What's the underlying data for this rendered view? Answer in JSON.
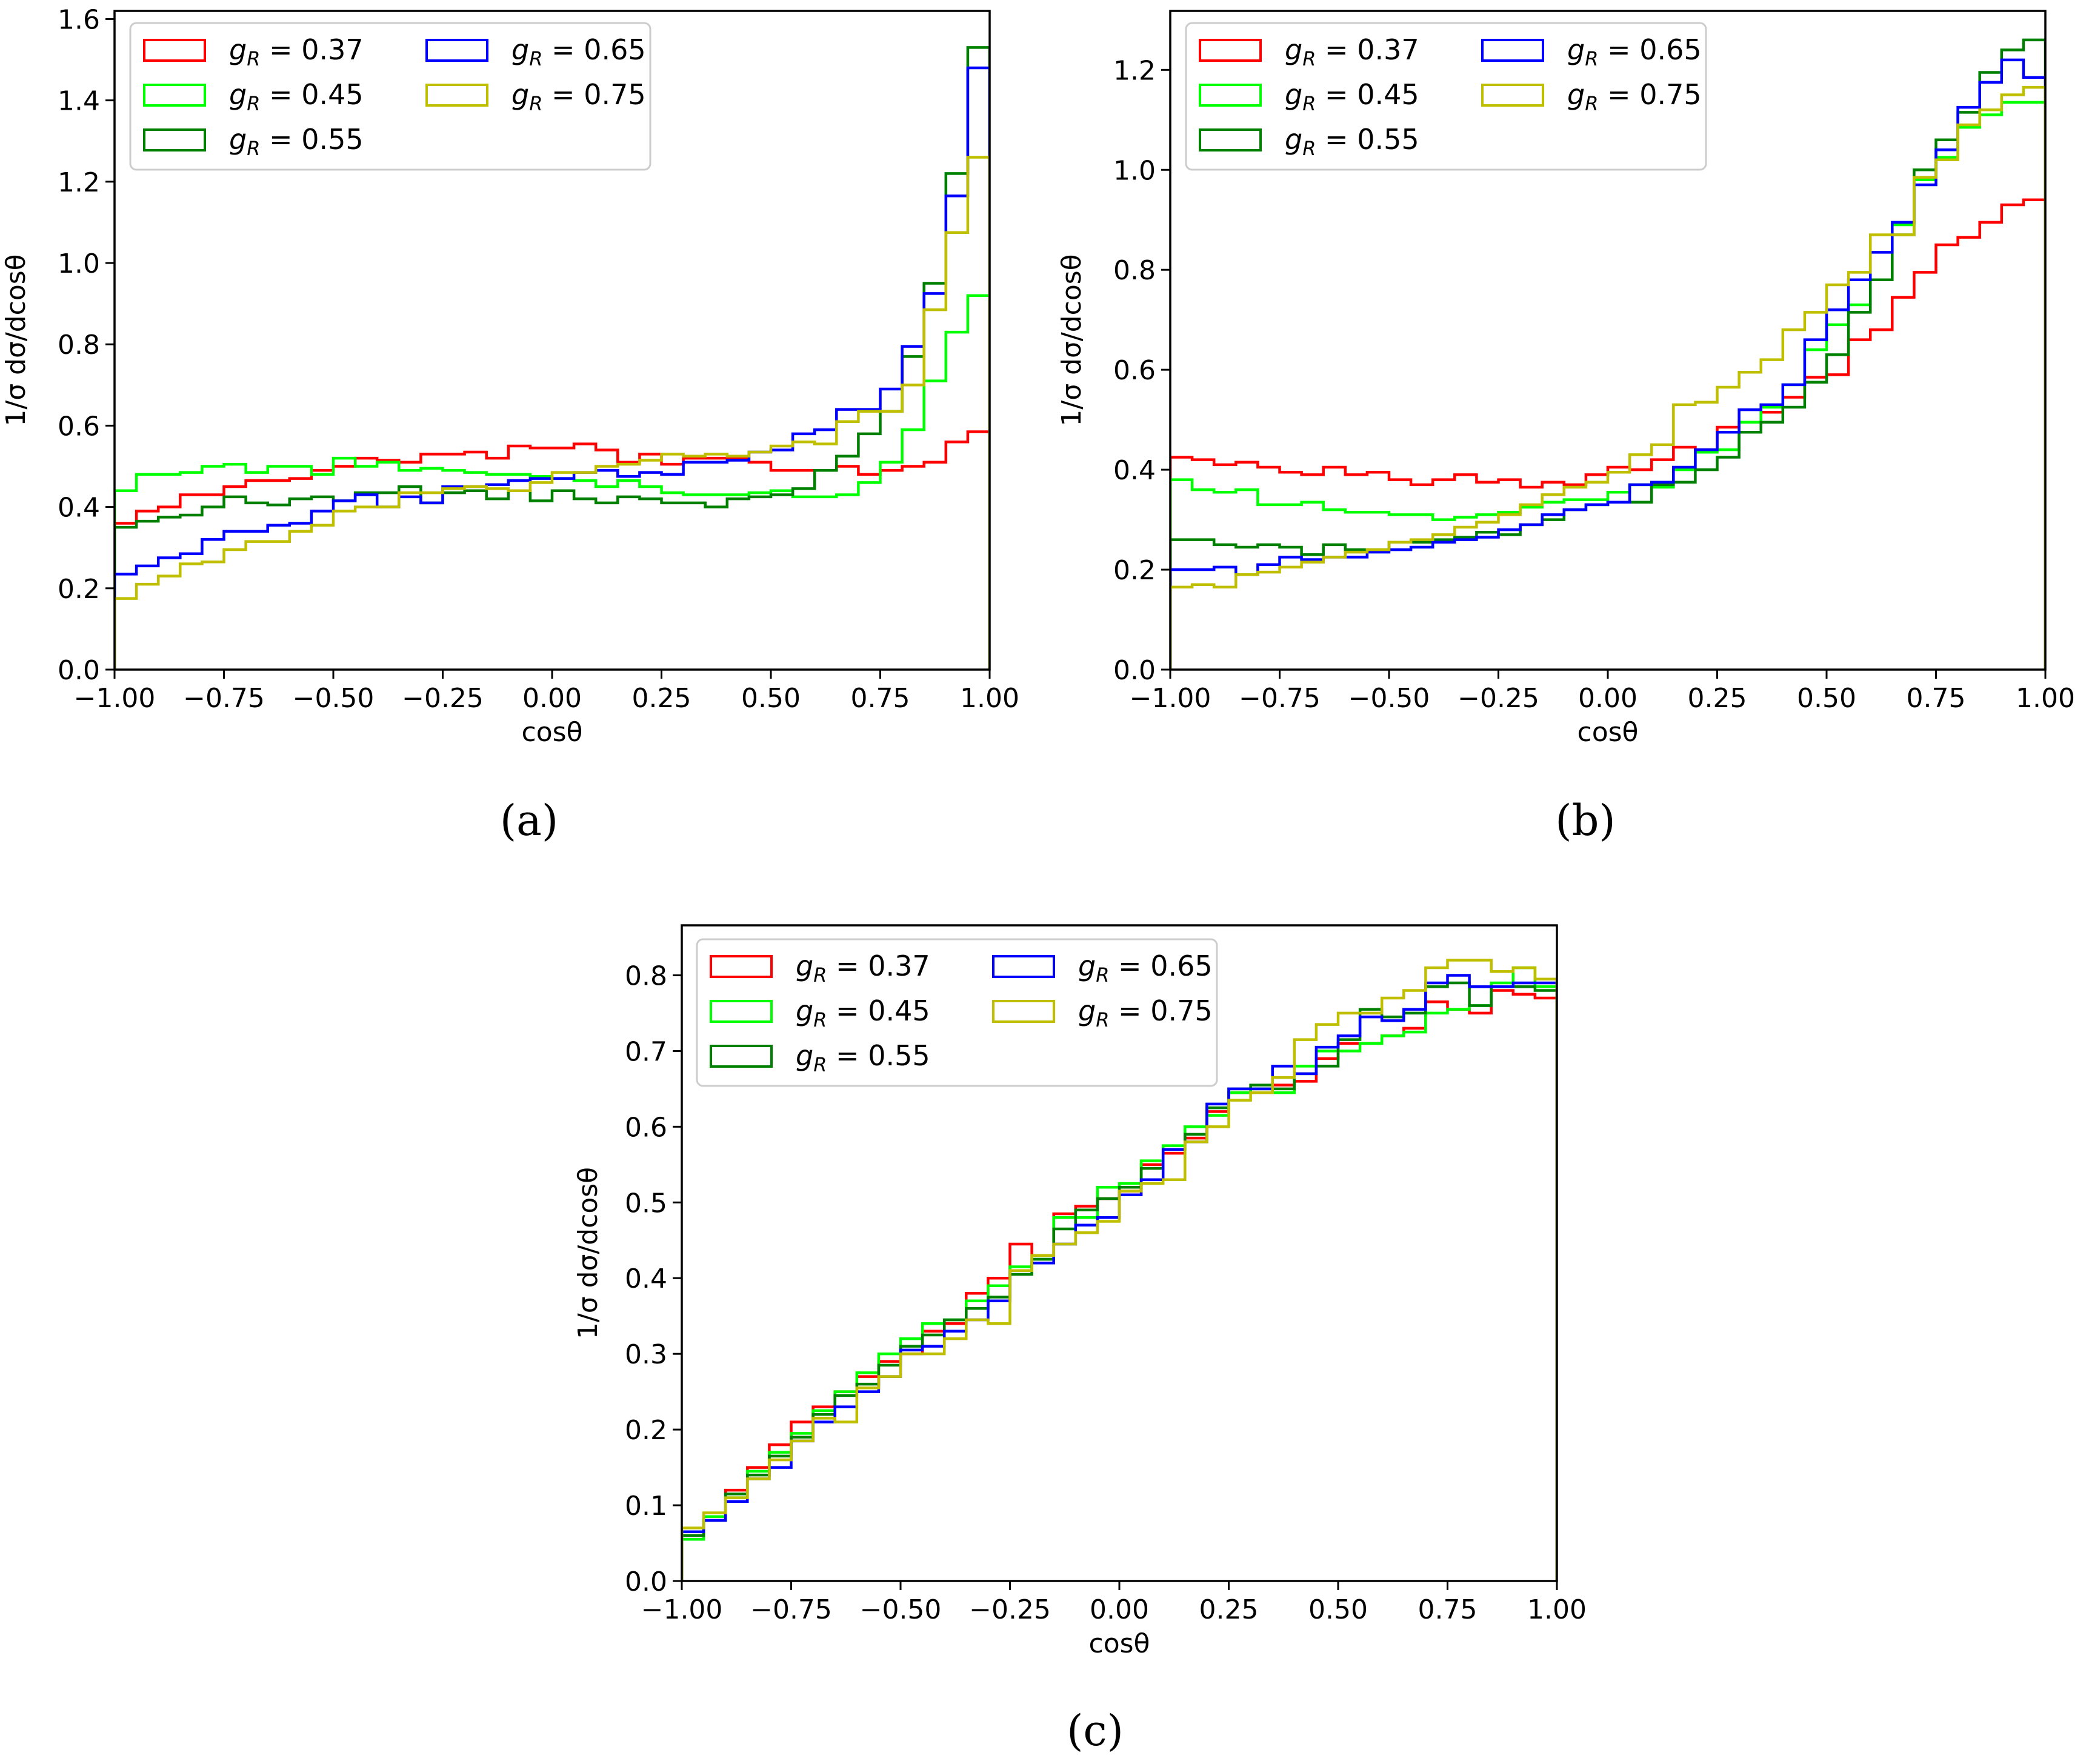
{
  "figure": {
    "panels_caption": [
      "(a)",
      "(b)",
      "(c)"
    ]
  },
  "chart_data": [
    {
      "id": "a",
      "type": "line",
      "style": "step-histogram",
      "caption": "(a)",
      "title": "",
      "xlabel": "cosθ",
      "ylabel": "1/σ dσ/dcosθ",
      "xlim": [
        -1.0,
        1.0
      ],
      "ylim": [
        0.0,
        1.62
      ],
      "xticks": [
        -1.0,
        -0.75,
        -0.5,
        -0.25,
        0.0,
        0.25,
        0.5,
        0.75,
        1.0
      ],
      "xtick_labels": [
        "−1.00",
        "−0.75",
        "−0.50",
        "−0.25",
        "0.00",
        "0.25",
        "0.50",
        "0.75",
        "1.00"
      ],
      "yticks": [
        0.0,
        0.2,
        0.4,
        0.6,
        0.8,
        1.0,
        1.2,
        1.4,
        1.6
      ],
      "ytick_labels": [
        "0.0",
        "0.2",
        "0.4",
        "0.6",
        "0.8",
        "1.0",
        "1.2",
        "1.4",
        "1.6"
      ],
      "bin_edges_range": [
        -1.0,
        1.0
      ],
      "n_bins": 40,
      "grid": false,
      "legend_position": "top-left",
      "series": [
        {
          "name": "g_R = 0.37",
          "label_value": "0.37",
          "color": "#ff0000",
          "values": [
            0.36,
            0.39,
            0.4,
            0.43,
            0.43,
            0.45,
            0.465,
            0.465,
            0.47,
            0.49,
            0.5,
            0.52,
            0.515,
            0.51,
            0.53,
            0.53,
            0.535,
            0.52,
            0.55,
            0.545,
            0.545,
            0.555,
            0.54,
            0.51,
            0.53,
            0.505,
            0.52,
            0.52,
            0.52,
            0.51,
            0.49,
            0.49,
            0.49,
            0.5,
            0.48,
            0.49,
            0.5,
            0.51,
            0.56,
            0.585
          ]
        },
        {
          "name": "g_R = 0.45",
          "label_value": "0.45",
          "color": "#00ff00",
          "values": [
            0.44,
            0.48,
            0.48,
            0.485,
            0.5,
            0.505,
            0.485,
            0.5,
            0.5,
            0.48,
            0.52,
            0.5,
            0.51,
            0.49,
            0.495,
            0.49,
            0.485,
            0.48,
            0.48,
            0.475,
            0.47,
            0.465,
            0.45,
            0.465,
            0.45,
            0.435,
            0.43,
            0.43,
            0.43,
            0.435,
            0.44,
            0.425,
            0.425,
            0.43,
            0.46,
            0.51,
            0.59,
            0.71,
            0.83,
            0.92
          ]
        },
        {
          "name": "g_R = 0.55",
          "label_value": "0.55",
          "color": "#008000",
          "values": [
            0.35,
            0.365,
            0.375,
            0.38,
            0.4,
            0.425,
            0.41,
            0.405,
            0.42,
            0.425,
            0.415,
            0.435,
            0.435,
            0.45,
            0.41,
            0.435,
            0.44,
            0.42,
            0.44,
            0.415,
            0.44,
            0.42,
            0.41,
            0.425,
            0.42,
            0.41,
            0.41,
            0.4,
            0.42,
            0.425,
            0.43,
            0.445,
            0.49,
            0.525,
            0.58,
            0.635,
            0.77,
            0.95,
            1.22,
            1.53
          ]
        },
        {
          "name": "g_R = 0.65",
          "label_value": "0.65",
          "color": "#0000ff",
          "values": [
            0.235,
            0.255,
            0.275,
            0.285,
            0.32,
            0.34,
            0.34,
            0.355,
            0.36,
            0.39,
            0.415,
            0.43,
            0.4,
            0.425,
            0.41,
            0.45,
            0.45,
            0.455,
            0.465,
            0.47,
            0.47,
            0.485,
            0.49,
            0.475,
            0.485,
            0.48,
            0.51,
            0.51,
            0.515,
            0.535,
            0.54,
            0.58,
            0.59,
            0.64,
            0.64,
            0.69,
            0.795,
            0.925,
            1.165,
            1.48
          ]
        },
        {
          "name": "g_R = 0.75",
          "label_value": "0.75",
          "color": "#bfbf00",
          "values": [
            0.175,
            0.21,
            0.23,
            0.26,
            0.265,
            0.295,
            0.315,
            0.315,
            0.34,
            0.355,
            0.39,
            0.4,
            0.4,
            0.435,
            0.435,
            0.445,
            0.45,
            0.445,
            0.44,
            0.46,
            0.485,
            0.485,
            0.5,
            0.505,
            0.515,
            0.53,
            0.525,
            0.53,
            0.525,
            0.535,
            0.55,
            0.56,
            0.555,
            0.61,
            0.635,
            0.635,
            0.7,
            0.885,
            1.075,
            1.26
          ]
        }
      ]
    },
    {
      "id": "b",
      "type": "line",
      "style": "step-histogram",
      "caption": "(b)",
      "title": "",
      "xlabel": "cosθ",
      "ylabel": "1/σ dσ/dcosθ",
      "xlim": [
        -1.0,
        1.0
      ],
      "ylim": [
        0.0,
        1.318
      ],
      "xticks": [
        -1.0,
        -0.75,
        -0.5,
        -0.25,
        0.0,
        0.25,
        0.5,
        0.75,
        1.0
      ],
      "xtick_labels": [
        "−1.00",
        "−0.75",
        "−0.50",
        "−0.25",
        "0.00",
        "0.25",
        "0.50",
        "0.75",
        "1.00"
      ],
      "yticks": [
        0.0,
        0.2,
        0.4,
        0.6,
        0.8,
        1.0,
        1.2
      ],
      "ytick_labels": [
        "0.0",
        "0.2",
        "0.4",
        "0.6",
        "0.8",
        "1.0",
        "1.2"
      ],
      "bin_edges_range": [
        -1.0,
        1.0
      ],
      "n_bins": 40,
      "grid": false,
      "legend_position": "top-left",
      "series": [
        {
          "name": "g_R = 0.37",
          "label_value": "0.37",
          "color": "#ff0000",
          "values": [
            0.425,
            0.42,
            0.41,
            0.415,
            0.405,
            0.395,
            0.39,
            0.405,
            0.39,
            0.395,
            0.38,
            0.37,
            0.38,
            0.39,
            0.375,
            0.38,
            0.365,
            0.375,
            0.37,
            0.39,
            0.405,
            0.4,
            0.42,
            0.445,
            0.44,
            0.485,
            0.495,
            0.515,
            0.545,
            0.585,
            0.59,
            0.66,
            0.68,
            0.745,
            0.795,
            0.85,
            0.865,
            0.895,
            0.93,
            0.94
          ]
        },
        {
          "name": "g_R = 0.45",
          "label_value": "0.45",
          "color": "#00ff00",
          "values": [
            0.38,
            0.36,
            0.355,
            0.36,
            0.33,
            0.33,
            0.335,
            0.32,
            0.315,
            0.315,
            0.31,
            0.31,
            0.3,
            0.305,
            0.31,
            0.315,
            0.325,
            0.335,
            0.34,
            0.34,
            0.355,
            0.37,
            0.365,
            0.4,
            0.435,
            0.44,
            0.495,
            0.525,
            0.57,
            0.64,
            0.69,
            0.73,
            0.78,
            0.89,
            0.98,
            1.025,
            1.085,
            1.11,
            1.135,
            1.135
          ]
        },
        {
          "name": "g_R = 0.55",
          "label_value": "0.55",
          "color": "#008000",
          "values": [
            0.26,
            0.26,
            0.25,
            0.245,
            0.25,
            0.245,
            0.23,
            0.25,
            0.24,
            0.24,
            0.255,
            0.255,
            0.26,
            0.265,
            0.275,
            0.27,
            0.29,
            0.3,
            0.32,
            0.33,
            0.335,
            0.335,
            0.37,
            0.375,
            0.4,
            0.425,
            0.475,
            0.495,
            0.525,
            0.575,
            0.63,
            0.715,
            0.78,
            0.87,
            1.0,
            1.06,
            1.115,
            1.195,
            1.24,
            1.26
          ]
        },
        {
          "name": "g_R = 0.65",
          "label_value": "0.65",
          "color": "#0000ff",
          "values": [
            0.2,
            0.2,
            0.205,
            0.19,
            0.21,
            0.225,
            0.22,
            0.225,
            0.225,
            0.235,
            0.24,
            0.245,
            0.255,
            0.26,
            0.265,
            0.28,
            0.29,
            0.31,
            0.32,
            0.33,
            0.335,
            0.37,
            0.375,
            0.405,
            0.44,
            0.475,
            0.52,
            0.53,
            0.57,
            0.66,
            0.72,
            0.78,
            0.835,
            0.895,
            0.97,
            1.04,
            1.125,
            1.175,
            1.22,
            1.185
          ]
        },
        {
          "name": "g_R = 0.75",
          "label_value": "0.75",
          "color": "#bfbf00",
          "values": [
            0.165,
            0.17,
            0.165,
            0.19,
            0.195,
            0.205,
            0.215,
            0.225,
            0.235,
            0.24,
            0.255,
            0.26,
            0.27,
            0.285,
            0.295,
            0.31,
            0.33,
            0.35,
            0.365,
            0.375,
            0.395,
            0.43,
            0.45,
            0.53,
            0.535,
            0.565,
            0.595,
            0.62,
            0.68,
            0.715,
            0.77,
            0.795,
            0.87,
            0.87,
            0.985,
            1.02,
            1.09,
            1.12,
            1.15,
            1.165
          ]
        }
      ]
    },
    {
      "id": "c",
      "type": "line",
      "style": "step-histogram",
      "caption": "(c)",
      "title": "",
      "xlabel": "cosθ",
      "ylabel": "1/σ dσ/dcosθ",
      "xlim": [
        -1.0,
        1.0
      ],
      "ylim": [
        0.0,
        0.866
      ],
      "xticks": [
        -1.0,
        -0.75,
        -0.5,
        -0.25,
        0.0,
        0.25,
        0.5,
        0.75,
        1.0
      ],
      "xtick_labels": [
        "−1.00",
        "−0.75",
        "−0.50",
        "−0.25",
        "0.00",
        "0.25",
        "0.50",
        "0.75",
        "1.00"
      ],
      "yticks": [
        0.0,
        0.1,
        0.2,
        0.3,
        0.4,
        0.5,
        0.6,
        0.7,
        0.8
      ],
      "ytick_labels": [
        "0.0",
        "0.1",
        "0.2",
        "0.3",
        "0.4",
        "0.5",
        "0.6",
        "0.7",
        "0.8"
      ],
      "bin_edges_range": [
        -1.0,
        1.0
      ],
      "n_bins": 40,
      "grid": false,
      "legend_position": "top-left",
      "series": [
        {
          "name": "g_R = 0.37",
          "label_value": "0.37",
          "color": "#ff0000",
          "values": [
            0.06,
            0.08,
            0.12,
            0.15,
            0.18,
            0.21,
            0.23,
            0.25,
            0.27,
            0.29,
            0.3,
            0.33,
            0.34,
            0.38,
            0.4,
            0.445,
            0.43,
            0.485,
            0.495,
            0.505,
            0.515,
            0.55,
            0.565,
            0.585,
            0.62,
            0.645,
            0.65,
            0.655,
            0.66,
            0.69,
            0.71,
            0.71,
            0.72,
            0.73,
            0.765,
            0.755,
            0.75,
            0.78,
            0.775,
            0.77
          ]
        },
        {
          "name": "g_R = 0.45",
          "label_value": "0.45",
          "color": "#00ff00",
          "values": [
            0.055,
            0.085,
            0.11,
            0.145,
            0.17,
            0.195,
            0.225,
            0.25,
            0.275,
            0.3,
            0.32,
            0.34,
            0.345,
            0.37,
            0.39,
            0.415,
            0.425,
            0.48,
            0.48,
            0.52,
            0.525,
            0.555,
            0.575,
            0.6,
            0.615,
            0.645,
            0.65,
            0.645,
            0.68,
            0.7,
            0.7,
            0.71,
            0.72,
            0.725,
            0.75,
            0.755,
            0.76,
            0.79,
            0.81,
            0.785
          ]
        },
        {
          "name": "g_R = 0.55",
          "label_value": "0.55",
          "color": "#008000",
          "values": [
            0.06,
            0.08,
            0.115,
            0.14,
            0.165,
            0.19,
            0.22,
            0.245,
            0.26,
            0.285,
            0.31,
            0.325,
            0.345,
            0.36,
            0.375,
            0.405,
            0.425,
            0.465,
            0.49,
            0.505,
            0.52,
            0.545,
            0.57,
            0.59,
            0.625,
            0.65,
            0.655,
            0.65,
            0.67,
            0.68,
            0.715,
            0.755,
            0.745,
            0.75,
            0.785,
            0.79,
            0.76,
            0.785,
            0.785,
            0.78
          ]
        },
        {
          "name": "g_R = 0.65",
          "label_value": "0.65",
          "color": "#0000ff",
          "values": [
            0.065,
            0.08,
            0.105,
            0.135,
            0.15,
            0.185,
            0.21,
            0.23,
            0.25,
            0.27,
            0.305,
            0.31,
            0.33,
            0.345,
            0.37,
            0.41,
            0.42,
            0.445,
            0.47,
            0.48,
            0.51,
            0.53,
            0.57,
            0.58,
            0.63,
            0.65,
            0.65,
            0.68,
            0.67,
            0.705,
            0.72,
            0.745,
            0.74,
            0.755,
            0.79,
            0.8,
            0.785,
            0.785,
            0.79,
            0.79
          ]
        },
        {
          "name": "g_R = 0.75",
          "label_value": "0.75",
          "color": "#bfbf00",
          "values": [
            0.07,
            0.09,
            0.11,
            0.135,
            0.16,
            0.185,
            0.215,
            0.21,
            0.255,
            0.27,
            0.3,
            0.3,
            0.32,
            0.345,
            0.34,
            0.41,
            0.43,
            0.445,
            0.46,
            0.475,
            0.515,
            0.525,
            0.53,
            0.58,
            0.6,
            0.635,
            0.645,
            0.665,
            0.715,
            0.735,
            0.75,
            0.75,
            0.77,
            0.78,
            0.81,
            0.82,
            0.82,
            0.805,
            0.81,
            0.795
          ]
        }
      ]
    }
  ]
}
